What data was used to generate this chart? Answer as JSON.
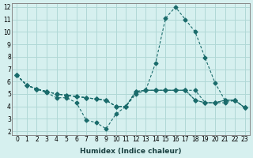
{
  "xlabel": "Humidex (Indice chaleur)",
  "ylabel": "",
  "bg_color": "#d6f0ef",
  "grid_color": "#b0d8d6",
  "line_color": "#1a6b6b",
  "xlim": [
    0,
    23
  ],
  "ylim": [
    2,
    12
  ],
  "xticks": [
    0,
    1,
    2,
    3,
    4,
    5,
    6,
    7,
    8,
    9,
    10,
    11,
    12,
    13,
    14,
    15,
    16,
    17,
    18,
    19,
    20,
    21,
    22,
    23
  ],
  "yticks": [
    2,
    3,
    4,
    5,
    6,
    7,
    8,
    9,
    10,
    11,
    12
  ],
  "lines": [
    {
      "x": [
        0,
        1,
        2,
        3,
        4,
        5,
        6,
        7,
        8,
        9,
        10,
        11,
        12,
        13,
        14,
        15,
        16,
        17,
        18,
        19,
        20,
        21,
        22,
        23
      ],
      "y": [
        6.5,
        5.7,
        5.4,
        5.1,
        4.7,
        4.7,
        4.3,
        2.9,
        2.7,
        2.2,
        3.4,
        4.0,
        5.2,
        5.3,
        5.3,
        5.3,
        5.3,
        5.3,
        5.3,
        4.3,
        4.3,
        4.5,
        4.5,
        3.9
      ],
      "marker": "D",
      "markersize": 2.5
    },
    {
      "x": [
        0,
        1,
        2,
        3,
        4,
        5,
        6,
        7,
        8,
        9,
        10,
        11,
        12,
        13,
        14,
        15,
        16,
        17,
        18,
        19,
        20,
        21,
        22,
        23
      ],
      "y": [
        6.5,
        5.7,
        5.4,
        5.2,
        5.0,
        4.9,
        4.8,
        4.7,
        4.6,
        4.5,
        4.0,
        4.0,
        5.2,
        5.3,
        7.5,
        11.1,
        12.0,
        11.0,
        10.0,
        7.9,
        5.9,
        4.5,
        4.5,
        3.9
      ],
      "marker": "D",
      "markersize": 2.5
    },
    {
      "x": [
        0,
        1,
        2,
        3,
        4,
        5,
        6,
        7,
        8,
        9,
        10,
        11,
        12,
        13,
        14,
        15,
        16,
        17,
        18,
        19,
        20,
        21,
        22,
        23
      ],
      "y": [
        6.5,
        5.7,
        5.4,
        5.2,
        5.0,
        4.9,
        4.8,
        4.7,
        4.6,
        4.5,
        4.0,
        4.0,
        5.2,
        5.3,
        5.3,
        5.3,
        5.3,
        5.3,
        4.5,
        4.3,
        4.3,
        4.5,
        4.5,
        3.9
      ],
      "marker": "D",
      "markersize": 2.5
    },
    {
      "x": [
        0,
        1,
        2,
        3,
        4,
        5,
        6,
        7,
        8,
        9,
        10,
        11,
        12,
        13,
        14,
        15,
        16,
        17,
        18,
        19,
        20,
        21,
        22,
        23
      ],
      "y": [
        6.5,
        5.7,
        5.4,
        5.2,
        5.0,
        4.9,
        4.8,
        4.7,
        4.6,
        4.5,
        4.0,
        4.0,
        5.0,
        5.3,
        5.3,
        5.3,
        5.3,
        5.3,
        4.5,
        4.3,
        4.3,
        4.3,
        4.5,
        3.9
      ],
      "marker": "D",
      "markersize": 2.5
    }
  ]
}
